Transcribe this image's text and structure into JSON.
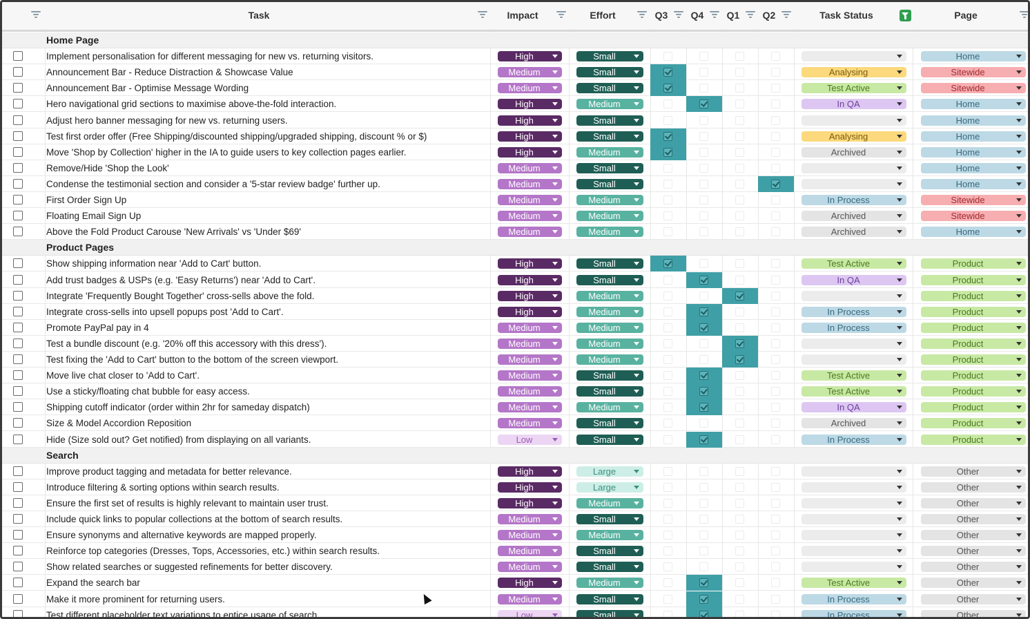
{
  "headers": {
    "task": "Task",
    "impact": "Impact",
    "effort": "Effort",
    "q3": "Q3",
    "q4": "Q4",
    "q1": "Q1",
    "q2": "Q2",
    "status": "Task Status",
    "page": "Page"
  },
  "groups": [
    {
      "name": "Home Page",
      "rows": [
        {
          "task": "Implement personalisation for different messaging for new vs. returning visitors.",
          "impact": "High",
          "effort": "Small",
          "quarter": "",
          "status": "",
          "page": "Home"
        },
        {
          "task": "Announcement Bar - Reduce Distraction & Showcase Value",
          "impact": "Medium",
          "effort": "Small",
          "quarter": "Q3",
          "status": "Analysing",
          "page": "Sitewide"
        },
        {
          "task": "Announcement Bar - Optimise Message Wording",
          "impact": "Medium",
          "effort": "Small",
          "quarter": "Q3",
          "status": "Test Active",
          "page": "Sitewide"
        },
        {
          "task": "Hero navigational grid sections to maximise above-the-fold interaction.",
          "impact": "High",
          "effort": "Medium",
          "quarter": "Q4",
          "status": "In QA",
          "page": "Home"
        },
        {
          "task": "Adjust hero banner messaging for new vs. returning users.",
          "impact": "High",
          "effort": "Small",
          "quarter": "",
          "status": "",
          "page": "Home"
        },
        {
          "task": "Test first order offer (Free Shipping/discounted shipping/upgraded shipping, discount % or $)",
          "impact": "High",
          "effort": "Small",
          "quarter": "Q3",
          "status": "Analysing",
          "page": "Home"
        },
        {
          "task": "Move 'Shop by Collection' higher in the IA to guide users to key collection pages earlier.",
          "impact": "High",
          "effort": "Medium",
          "quarter": "Q3",
          "status": "Archived",
          "page": "Home"
        },
        {
          "task": "Remove/Hide 'Shop the Look'",
          "impact": "Medium",
          "effort": "Small",
          "quarter": "",
          "status": "",
          "page": "Home"
        },
        {
          "task": "Condense the testimonial section and consider a '5-star review badge' further up.",
          "impact": "Medium",
          "effort": "Small",
          "quarter": "Q2",
          "status": "",
          "page": "Home"
        },
        {
          "task": "First Order Sign Up",
          "impact": "Medium",
          "effort": "Medium",
          "quarter": "",
          "status": "In Process",
          "page": "Sitewide"
        },
        {
          "task": "Floating Email Sign Up",
          "impact": "Medium",
          "effort": "Medium",
          "quarter": "",
          "status": "Archived",
          "page": "Sitewide"
        },
        {
          "task": "Above the Fold Product Carouse 'New Arrivals' vs 'Under $69'",
          "impact": "Medium",
          "effort": "Medium",
          "quarter": "",
          "status": "Archived",
          "page": "Home"
        }
      ]
    },
    {
      "name": "Product Pages",
      "rows": [
        {
          "task": "Show shipping information near 'Add to Cart' button.",
          "impact": "High",
          "effort": "Small",
          "quarter": "Q3",
          "status": "Test Active",
          "page": "Product"
        },
        {
          "task": "Add trust badges & USPs (e.g. 'Easy Returns') near 'Add to Cart'.",
          "impact": "High",
          "effort": "Small",
          "quarter": "Q4",
          "status": "In QA",
          "page": "Product"
        },
        {
          "task": "Integrate 'Frequently Bought Together' cross-sells above the fold.",
          "impact": "High",
          "effort": "Medium",
          "quarter": "Q1",
          "status": "",
          "page": "Product"
        },
        {
          "task": "Integrate cross-sells into upsell popups post 'Add to Cart'.",
          "impact": "High",
          "effort": "Medium",
          "quarter": "Q4",
          "status": "In Process",
          "page": "Product"
        },
        {
          "task": "Promote PayPal pay in 4",
          "impact": "Medium",
          "effort": "Medium",
          "quarter": "Q4",
          "status": "In Process",
          "page": "Product"
        },
        {
          "task": "Test a bundle discount (e.g. '20% off this accessory with this dress').",
          "impact": "Medium",
          "effort": "Medium",
          "quarter": "Q1",
          "status": "",
          "page": "Product"
        },
        {
          "task": "Test fixing the 'Add to Cart' button to the bottom of the screen viewport.",
          "impact": "Medium",
          "effort": "Medium",
          "quarter": "Q1",
          "status": "",
          "page": "Product"
        },
        {
          "task": "Move live chat closer to 'Add to Cart'.",
          "impact": "Medium",
          "effort": "Small",
          "quarter": "Q4",
          "status": "Test Active",
          "page": "Product"
        },
        {
          "task": "Use a sticky/floating chat bubble for easy access.",
          "impact": "Medium",
          "effort": "Small",
          "quarter": "Q4",
          "status": "Test Active",
          "page": "Product"
        },
        {
          "task": "Shipping cutoff indicator (order within 2hr for sameday dispatch)",
          "impact": "Medium",
          "effort": "Medium",
          "quarter": "Q4",
          "status": "In QA",
          "page": "Product"
        },
        {
          "task": "Size & Model Accordion Reposition",
          "impact": "Medium",
          "effort": "Small",
          "quarter": "",
          "status": "Archived",
          "page": "Product"
        },
        {
          "task": "Hide (Size sold out? Get notified) from displaying on all variants.",
          "impact": "Low",
          "effort": "Small",
          "quarter": "Q4",
          "status": "In Process",
          "page": "Product"
        }
      ]
    },
    {
      "name": "Search",
      "rows": [
        {
          "task": "Improve product tagging and metadata for better relevance.",
          "impact": "High",
          "effort": "Large",
          "quarter": "",
          "status": "",
          "page": "Other"
        },
        {
          "task": "Introduce filtering & sorting options within search results.",
          "impact": "High",
          "effort": "Large",
          "quarter": "",
          "status": "",
          "page": "Other"
        },
        {
          "task": "Ensure the first set of results is highly relevant to maintain user trust.",
          "impact": "High",
          "effort": "Medium",
          "quarter": "",
          "status": "",
          "page": "Other"
        },
        {
          "task": "Include quick links to popular collections at the bottom of search results.",
          "impact": "Medium",
          "effort": "Small",
          "quarter": "",
          "status": "",
          "page": "Other"
        },
        {
          "task": "Ensure synonyms and alternative keywords are mapped properly.",
          "impact": "Medium",
          "effort": "Medium",
          "quarter": "",
          "status": "",
          "page": "Other"
        },
        {
          "task": "Reinforce top categories (Dresses, Tops, Accessories, etc.) within search results.",
          "impact": "Medium",
          "effort": "Small",
          "quarter": "",
          "status": "",
          "page": "Other"
        },
        {
          "task": "Show related searches or suggested refinements for better discovery.",
          "impact": "Medium",
          "effort": "Small",
          "quarter": "",
          "status": "",
          "page": "Other"
        },
        {
          "task": "Expand the search bar",
          "impact": "High",
          "effort": "Medium",
          "quarter": "Q4",
          "status": "Test Active",
          "page": "Other"
        },
        {
          "task": "Make it more prominent for returning users.",
          "impact": "Medium",
          "effort": "Small",
          "quarter": "Q4",
          "status": "In Process",
          "page": "Other"
        },
        {
          "task": "Test different placeholder text variations to entice usage of search",
          "impact": "Low",
          "effort": "Small",
          "quarter": "Q4",
          "status": "In Process",
          "page": "Other"
        }
      ]
    }
  ]
}
